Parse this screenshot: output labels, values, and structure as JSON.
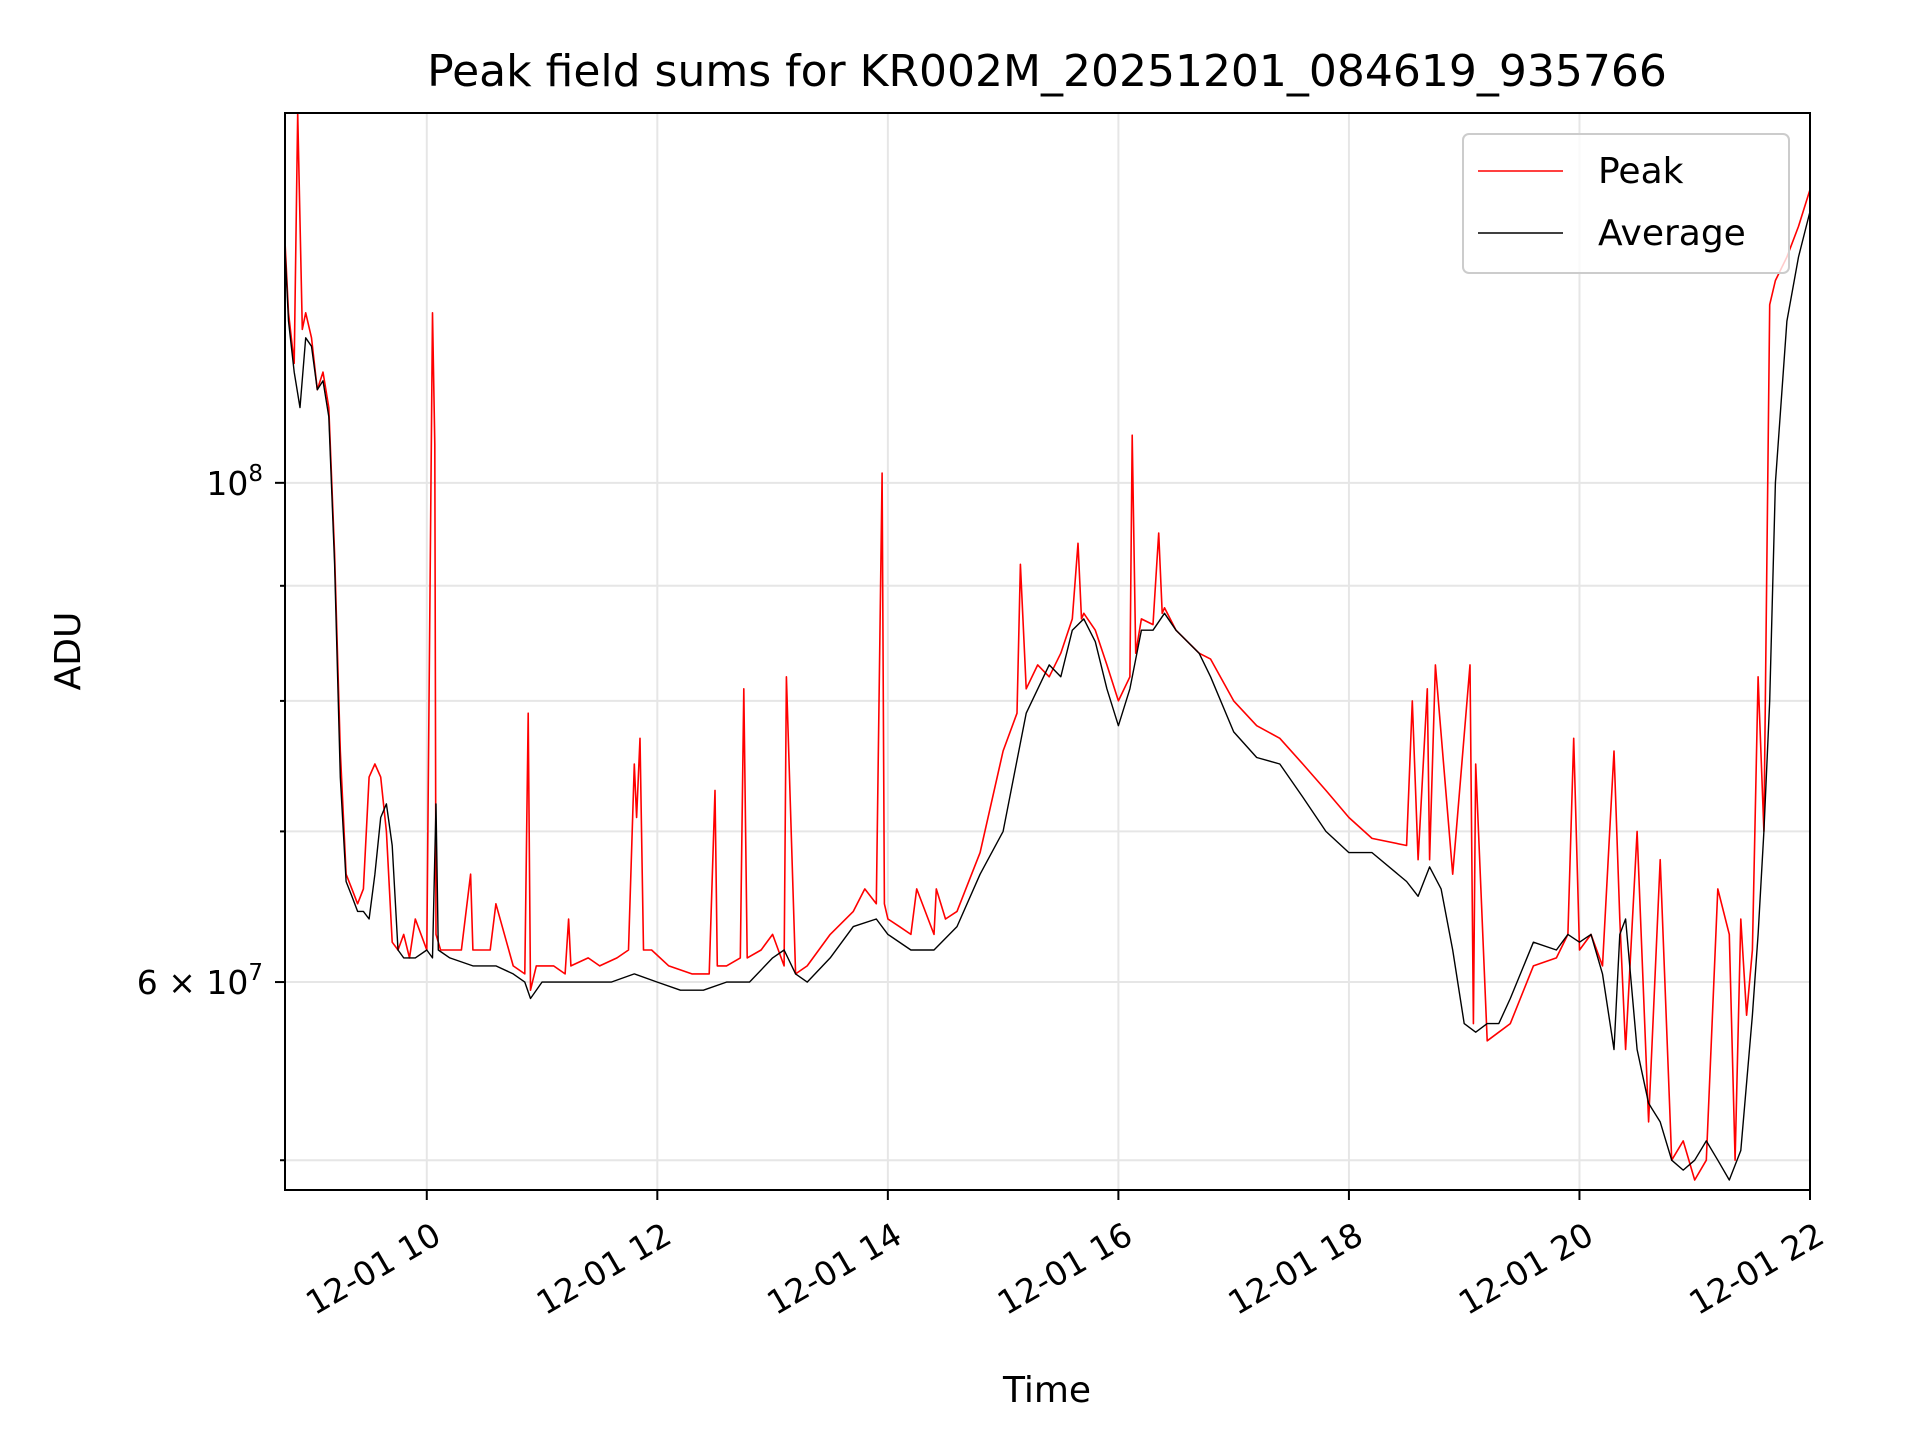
{
  "chart_data": {
    "type": "line",
    "title": "Peak field sums for KR002M_20251201_084619_935766",
    "xlabel": "Time",
    "ylabel": "ADU",
    "y_scale": "log",
    "ylim": [
      48500000,
      146000000
    ],
    "xlim_hours": [
      8.77,
      22.0
    ],
    "grid": true,
    "legend_position": "top-right",
    "x_ticks": [
      {
        "hour": 10,
        "label": "12-01 10"
      },
      {
        "hour": 12,
        "label": "12-01 12"
      },
      {
        "hour": 14,
        "label": "12-01 14"
      },
      {
        "hour": 16,
        "label": "12-01 16"
      },
      {
        "hour": 18,
        "label": "12-01 18"
      },
      {
        "hour": 20,
        "label": "12-01 20"
      },
      {
        "hour": 22,
        "label": "12-01 22"
      }
    ],
    "y_major_ticks": [
      {
        "value": 100000000,
        "base": "10",
        "exp": "8"
      },
      {
        "value": 60000000,
        "mant": "6 × 10",
        "exp": "7"
      }
    ],
    "y_minor_gridlines": [
      50000000,
      70000000,
      80000000,
      90000000
    ],
    "series": [
      {
        "name": "Peak",
        "color": "#ff0000",
        "x": [
          8.77,
          8.8,
          8.85,
          8.88,
          8.92,
          8.95,
          9.0,
          9.05,
          9.1,
          9.15,
          9.2,
          9.25,
          9.3,
          9.35,
          9.4,
          9.45,
          9.5,
          9.55,
          9.6,
          9.65,
          9.7,
          9.75,
          9.8,
          9.85,
          9.9,
          10.0,
          10.05,
          10.07,
          10.08,
          10.1,
          10.12,
          10.15,
          10.3,
          10.38,
          10.4,
          10.55,
          10.6,
          10.75,
          10.85,
          10.88,
          10.9,
          10.95,
          11.1,
          11.2,
          11.23,
          11.25,
          11.4,
          11.5,
          11.65,
          11.75,
          11.8,
          11.82,
          11.85,
          11.88,
          11.95,
          12.1,
          12.3,
          12.45,
          12.5,
          12.52,
          12.6,
          12.72,
          12.75,
          12.78,
          12.9,
          13.0,
          13.1,
          13.12,
          13.2,
          13.3,
          13.5,
          13.7,
          13.8,
          13.9,
          13.95,
          13.97,
          14.0,
          14.1,
          14.2,
          14.25,
          14.4,
          14.42,
          14.5,
          14.6,
          14.8,
          15.0,
          15.12,
          15.15,
          15.2,
          15.3,
          15.4,
          15.5,
          15.6,
          15.65,
          15.68,
          15.7,
          15.8,
          15.9,
          16.0,
          16.1,
          16.12,
          16.15,
          16.2,
          16.3,
          16.35,
          16.38,
          16.4,
          16.5,
          16.7,
          16.8,
          17.0,
          17.2,
          17.4,
          17.6,
          17.8,
          18.0,
          18.2,
          18.5,
          18.55,
          18.6,
          18.68,
          18.7,
          18.75,
          18.9,
          19.05,
          19.08,
          19.1,
          19.2,
          19.3,
          19.4,
          19.6,
          19.8,
          19.9,
          19.95,
          20.0,
          20.1,
          20.2,
          20.3,
          20.35,
          20.4,
          20.5,
          20.6,
          20.7,
          20.8,
          20.9,
          21.0,
          21.1,
          21.2,
          21.3,
          21.35,
          21.4,
          21.45,
          21.5,
          21.55,
          21.6,
          21.65,
          21.7,
          21.8,
          21.9,
          22.0
        ],
        "values": [
          128000000,
          119000000,
          113000000,
          146000000,
          117000000,
          119000000,
          116000000,
          110000000,
          112000000,
          108000000,
          93000000,
          76000000,
          67000000,
          66000000,
          65000000,
          66000000,
          74000000,
          75000000,
          74000000,
          70000000,
          62500000,
          62000000,
          63000000,
          61500000,
          64000000,
          62000000,
          119000000,
          104000000,
          63000000,
          62500000,
          62000000,
          62000000,
          62000000,
          67000000,
          62000000,
          62000000,
          65000000,
          61000000,
          60500000,
          79000000,
          59500000,
          61000000,
          61000000,
          60500000,
          64000000,
          61000000,
          61500000,
          61000000,
          61500000,
          62000000,
          75000000,
          71000000,
          77000000,
          62000000,
          62000000,
          61000000,
          60500000,
          60500000,
          73000000,
          61000000,
          61000000,
          61500000,
          81000000,
          61500000,
          62000000,
          63000000,
          61000000,
          82000000,
          60500000,
          61000000,
          63000000,
          64500000,
          66000000,
          65000000,
          101000000,
          65000000,
          64000000,
          63500000,
          63000000,
          66000000,
          63000000,
          66000000,
          64000000,
          64500000,
          68500000,
          76000000,
          79000000,
          92000000,
          81000000,
          83000000,
          82000000,
          84000000,
          87000000,
          94000000,
          87000000,
          87500000,
          86000000,
          83000000,
          80000000,
          82000000,
          105000000,
          84000000,
          87000000,
          86500000,
          95000000,
          87500000,
          88000000,
          86000000,
          84000000,
          83500000,
          80000000,
          78000000,
          77000000,
          75000000,
          73000000,
          71000000,
          69500000,
          69000000,
          80000000,
          68000000,
          81000000,
          68000000,
          83000000,
          67000000,
          83000000,
          57500000,
          75000000,
          56500000,
          57000000,
          57500000,
          61000000,
          61500000,
          63000000,
          77000000,
          62000000,
          63000000,
          61000000,
          76000000,
          64000000,
          56000000,
          70000000,
          52000000,
          68000000,
          50000000,
          51000000,
          49000000,
          50000000,
          66000000,
          63000000,
          50000000,
          64000000,
          58000000,
          62000000,
          82000000,
          70000000,
          120000000,
          123000000,
          126000000,
          130000000,
          135000000
        ]
      },
      {
        "name": "Average",
        "color": "#000000",
        "x": [
          8.77,
          8.8,
          8.85,
          8.9,
          8.95,
          9.0,
          9.05,
          9.1,
          9.15,
          9.2,
          9.25,
          9.3,
          9.35,
          9.4,
          9.45,
          9.5,
          9.55,
          9.6,
          9.65,
          9.7,
          9.75,
          9.8,
          9.9,
          10.0,
          10.05,
          10.08,
          10.1,
          10.2,
          10.4,
          10.6,
          10.75,
          10.85,
          10.9,
          11.0,
          11.2,
          11.4,
          11.6,
          11.8,
          12.0,
          12.2,
          12.4,
          12.6,
          12.8,
          13.0,
          13.1,
          13.2,
          13.3,
          13.5,
          13.7,
          13.9,
          14.0,
          14.2,
          14.4,
          14.6,
          14.8,
          15.0,
          15.2,
          15.4,
          15.5,
          15.6,
          15.7,
          15.8,
          15.9,
          16.0,
          16.1,
          16.2,
          16.3,
          16.4,
          16.5,
          16.7,
          16.8,
          17.0,
          17.2,
          17.4,
          17.6,
          17.8,
          18.0,
          18.2,
          18.5,
          18.6,
          18.7,
          18.8,
          18.9,
          19.0,
          19.1,
          19.2,
          19.3,
          19.4,
          19.6,
          19.8,
          19.9,
          20.0,
          20.1,
          20.2,
          20.3,
          20.35,
          20.4,
          20.5,
          20.6,
          20.7,
          20.8,
          20.9,
          21.0,
          21.1,
          21.2,
          21.3,
          21.4,
          21.5,
          21.55,
          21.6,
          21.65,
          21.7,
          21.8,
          21.9,
          22.0
        ],
        "values": [
          127000000,
          118000000,
          112000000,
          108000000,
          116000000,
          115000000,
          110000000,
          111000000,
          107000000,
          92000000,
          74000000,
          66500000,
          65500000,
          64500000,
          64500000,
          64000000,
          67000000,
          71000000,
          72000000,
          69000000,
          62000000,
          61500000,
          61500000,
          62000000,
          61500000,
          72000000,
          62000000,
          61500000,
          61000000,
          61000000,
          60500000,
          60000000,
          59000000,
          60000000,
          60000000,
          60000000,
          60000000,
          60500000,
          60000000,
          59500000,
          59500000,
          60000000,
          60000000,
          61500000,
          62000000,
          60500000,
          60000000,
          61500000,
          63500000,
          64000000,
          63000000,
          62000000,
          62000000,
          63500000,
          67000000,
          70000000,
          79000000,
          83000000,
          82000000,
          86000000,
          87000000,
          85000000,
          81000000,
          78000000,
          81000000,
          86000000,
          86000000,
          87500000,
          86000000,
          84000000,
          82000000,
          77500000,
          75500000,
          75000000,
          72500000,
          70000000,
          68500000,
          68500000,
          66500000,
          65500000,
          67500000,
          66000000,
          62000000,
          57500000,
          57000000,
          57500000,
          57500000,
          59000000,
          62500000,
          62000000,
          63000000,
          62500000,
          63000000,
          60500000,
          56000000,
          63000000,
          64000000,
          56000000,
          53000000,
          52000000,
          50000000,
          49500000,
          50000000,
          51000000,
          50000000,
          49000000,
          50500000,
          58000000,
          63000000,
          70000000,
          80000000,
          100000000,
          118000000,
          126000000,
          132000000
        ]
      }
    ]
  }
}
